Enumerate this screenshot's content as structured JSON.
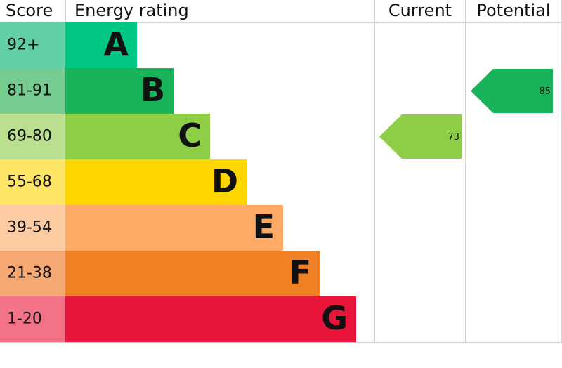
{
  "chart_data": {
    "type": "epc",
    "headers": {
      "score": "Score",
      "rating": "Energy rating",
      "current": "Current",
      "potential": "Potential"
    },
    "bands": [
      {
        "score": "92+",
        "letter": "A",
        "color": "#00c781",
        "score_color": "#62cfa7"
      },
      {
        "score": "81-91",
        "letter": "B",
        "color": "#19b459",
        "score_color": "#75cb90"
      },
      {
        "score": "69-80",
        "letter": "C",
        "color": "#8dce46",
        "score_color": "#badf8e"
      },
      {
        "score": "55-68",
        "letter": "D",
        "color": "#ffd500",
        "score_color": "#ffe566"
      },
      {
        "score": "39-54",
        "letter": "E",
        "color": "#fcaa65",
        "score_color": "#fdcba2"
      },
      {
        "score": "21-38",
        "letter": "F",
        "color": "#ef8023",
        "score_color": "#f5a871"
      },
      {
        "score": "1-20",
        "letter": "G",
        "color": "#e9153b",
        "score_color": "#f27388"
      }
    ],
    "current": 73,
    "potential": 85
  }
}
